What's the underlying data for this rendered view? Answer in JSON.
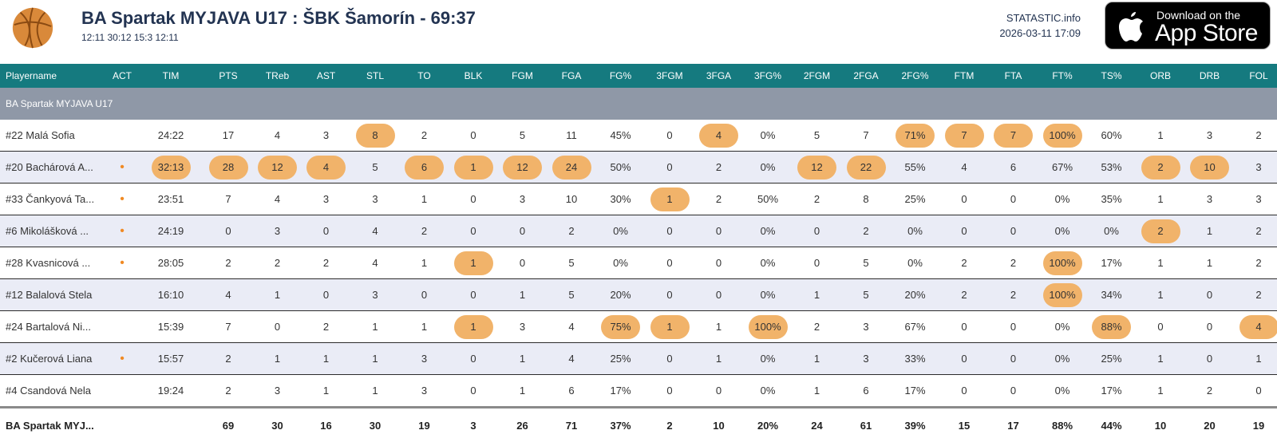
{
  "header": {
    "title": "BA Spartak MYJAVA U17 : ŠBK Šamorín - 69:37",
    "quarters": "12:11 30:12 15:3 12:11",
    "site": "STATASTIC.info",
    "datetime": "2026-03-11 17:09",
    "appstore_small": "Download on the",
    "appstore_big": "App Store",
    "icons": [
      "basketball-logo-icon",
      "apple-icon"
    ]
  },
  "colors": {
    "header_bg": "#157a7f",
    "team_row_bg": "#8f98a7",
    "highlight": "#f1b36a",
    "active_dot": "#f08a24",
    "title": "#233452"
  },
  "columns": [
    "Playername",
    "ACT",
    "TIM",
    "PTS",
    "TReb",
    "AST",
    "STL",
    "TO",
    "BLK",
    "FGM",
    "FGA",
    "FG%",
    "3FGM",
    "3FGA",
    "3FG%",
    "2FGM",
    "2FGA",
    "2FG%",
    "FTM",
    "FTA",
    "FT%",
    "TS%",
    "ORB",
    "DRB",
    "FOL"
  ],
  "team_label": "BA Spartak MYJAVA U17",
  "players": [
    {
      "name": "#22 Malá Sofia",
      "act": "",
      "values": [
        "24:22",
        "17",
        "4",
        "3",
        "8",
        "2",
        "0",
        "5",
        "11",
        "45%",
        "0",
        "4",
        "0%",
        "5",
        "7",
        "71%",
        "7",
        "7",
        "100%",
        "60%",
        "1",
        "3",
        "2"
      ],
      "highlights": [
        4,
        11,
        15,
        16,
        17,
        18
      ]
    },
    {
      "name": "#20 Bachárová A...",
      "act": "•",
      "values": [
        "32:13",
        "28",
        "12",
        "4",
        "5",
        "6",
        "1",
        "12",
        "24",
        "50%",
        "0",
        "2",
        "0%",
        "12",
        "22",
        "55%",
        "4",
        "6",
        "67%",
        "53%",
        "2",
        "10",
        "3"
      ],
      "highlights": [
        0,
        1,
        2,
        3,
        5,
        6,
        7,
        8,
        13,
        14,
        20,
        21
      ]
    },
    {
      "name": "#33 Čankyová Ta...",
      "act": "•",
      "values": [
        "23:51",
        "7",
        "4",
        "3",
        "3",
        "1",
        "0",
        "3",
        "10",
        "30%",
        "1",
        "2",
        "50%",
        "2",
        "8",
        "25%",
        "0",
        "0",
        "0%",
        "35%",
        "1",
        "3",
        "3"
      ],
      "highlights": [
        10
      ]
    },
    {
      "name": "#6 Mikolášková ...",
      "act": "•",
      "values": [
        "24:19",
        "0",
        "3",
        "0",
        "4",
        "2",
        "0",
        "0",
        "2",
        "0%",
        "0",
        "0",
        "0%",
        "0",
        "2",
        "0%",
        "0",
        "0",
        "0%",
        "0%",
        "2",
        "1",
        "2"
      ],
      "highlights": [
        20
      ]
    },
    {
      "name": "#28 Kvasnicová ...",
      "act": "•",
      "values": [
        "28:05",
        "2",
        "2",
        "2",
        "4",
        "1",
        "1",
        "0",
        "5",
        "0%",
        "0",
        "0",
        "0%",
        "0",
        "5",
        "0%",
        "2",
        "2",
        "100%",
        "17%",
        "1",
        "1",
        "2"
      ],
      "highlights": [
        6,
        18
      ]
    },
    {
      "name": "#12 Balalová Stela",
      "act": "",
      "values": [
        "16:10",
        "4",
        "1",
        "0",
        "3",
        "0",
        "0",
        "1",
        "5",
        "20%",
        "0",
        "0",
        "0%",
        "1",
        "5",
        "20%",
        "2",
        "2",
        "100%",
        "34%",
        "1",
        "0",
        "2"
      ],
      "highlights": [
        18
      ]
    },
    {
      "name": "#24 Bartalová Ni...",
      "act": "",
      "values": [
        "15:39",
        "7",
        "0",
        "2",
        "1",
        "1",
        "1",
        "3",
        "4",
        "75%",
        "1",
        "1",
        "100%",
        "2",
        "3",
        "67%",
        "0",
        "0",
        "0%",
        "88%",
        "0",
        "0",
        "4"
      ],
      "highlights": [
        6,
        9,
        10,
        12,
        19,
        22
      ]
    },
    {
      "name": "#2 Kučerová Liana",
      "act": "•",
      "values": [
        "15:57",
        "2",
        "1",
        "1",
        "1",
        "3",
        "0",
        "1",
        "4",
        "25%",
        "0",
        "1",
        "0%",
        "1",
        "3",
        "33%",
        "0",
        "0",
        "0%",
        "25%",
        "1",
        "0",
        "1"
      ],
      "highlights": []
    },
    {
      "name": "#4 Csandová Nela",
      "act": "",
      "values": [
        "19:24",
        "2",
        "3",
        "1",
        "1",
        "3",
        "0",
        "1",
        "6",
        "17%",
        "0",
        "0",
        "0%",
        "1",
        "6",
        "17%",
        "0",
        "0",
        "0%",
        "17%",
        "1",
        "2",
        "0"
      ],
      "highlights": []
    }
  ],
  "totals": {
    "name": "BA Spartak MYJ...",
    "act": "",
    "values": [
      "",
      "69",
      "30",
      "16",
      "30",
      "19",
      "3",
      "26",
      "71",
      "37%",
      "2",
      "10",
      "20%",
      "24",
      "61",
      "39%",
      "15",
      "17",
      "88%",
      "44%",
      "10",
      "20",
      "19"
    ]
  }
}
